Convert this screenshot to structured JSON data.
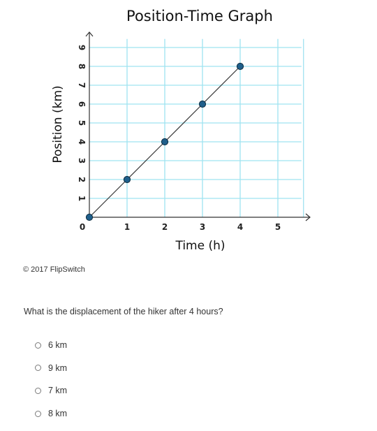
{
  "chart_data": {
    "type": "line",
    "title": "Position-Time Graph",
    "xlabel": "Time (h)",
    "ylabel": "Position (km)",
    "x": [
      0,
      1,
      2,
      3,
      4
    ],
    "y": [
      0,
      2,
      4,
      6,
      8
    ],
    "xlim": [
      0,
      5.7
    ],
    "ylim": [
      0,
      9.6
    ],
    "xticks": [
      "0",
      "1",
      "2",
      "3",
      "4",
      "5"
    ],
    "yticks": [
      "1",
      "2",
      "3",
      "4",
      "5",
      "6",
      "7",
      "8",
      "9"
    ],
    "grid": true,
    "colors": {
      "grid": "#9fe3f0",
      "line": "#333333",
      "point": "#1f5f8b",
      "axis": "#333333"
    }
  },
  "copyright": "© 2017 FlipSwitch",
  "question": "What is the displacement of the hiker after 4 hours?",
  "choices": [
    {
      "label": "6 km"
    },
    {
      "label": "9 km"
    },
    {
      "label": "7 km"
    },
    {
      "label": "8 km"
    }
  ]
}
